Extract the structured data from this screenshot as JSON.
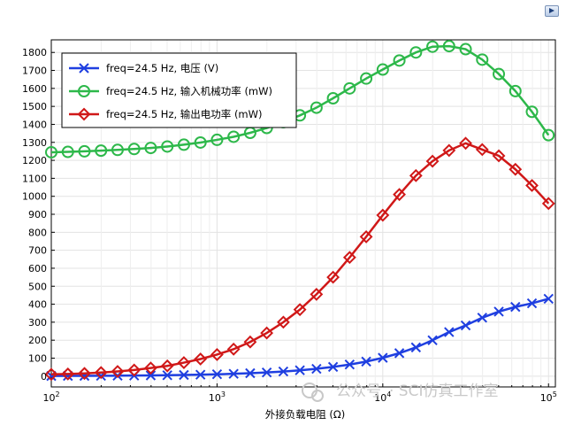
{
  "chart_data": {
    "type": "line",
    "title": "",
    "xlabel": "外接负载电阻 (Ω)",
    "ylabel": "",
    "xscale": "log",
    "xlim": [
      100,
      110000
    ],
    "ylim": [
      -60,
      1870
    ],
    "xticks": [
      {
        "value": 100,
        "label": "10",
        "exp": "2"
      },
      {
        "value": 1000,
        "label": "10",
        "exp": "3"
      },
      {
        "value": 10000,
        "label": "10",
        "exp": "4"
      },
      {
        "value": 100000,
        "label": "10",
        "exp": "5"
      }
    ],
    "yticks": [
      0,
      100,
      200,
      300,
      400,
      500,
      600,
      700,
      800,
      900,
      1000,
      1100,
      1200,
      1300,
      1400,
      1500,
      1600,
      1700,
      1800
    ],
    "grid": true,
    "legend_position": "top-left",
    "x": [
      100,
      125.9,
      158.5,
      199.5,
      251.2,
      316.2,
      398.1,
      501.2,
      631,
      794.3,
      1000,
      1259,
      1585,
      1995,
      2512,
      3162,
      3981,
      5012,
      6310,
      7943,
      10000,
      12589,
      15849,
      19953,
      25119,
      31623,
      39811,
      50119,
      63096,
      79433,
      100000
    ],
    "series": [
      {
        "name": "freq=24.5 Hz, 电压 (V)",
        "color": "#1f3fe0",
        "marker": "x",
        "values": [
          1,
          1.3,
          1.6,
          2,
          2.6,
          3.2,
          4.1,
          5.1,
          6.5,
          8.2,
          10.3,
          13,
          16.3,
          20.5,
          25.8,
          32.5,
          40.8,
          51.3,
          64.5,
          81,
          101.8,
          127.7,
          159.8,
          199.5,
          245,
          282,
          325,
          359,
          385,
          405,
          430
        ]
      },
      {
        "name": "freq=24.5 Hz, 输入机械功率 (mW)",
        "color": "#2db84a",
        "marker": "o",
        "values": [
          1245,
          1247,
          1250,
          1254,
          1258,
          1263,
          1269,
          1277,
          1287,
          1299,
          1314,
          1331,
          1353,
          1380,
          1412,
          1450,
          1493,
          1545,
          1600,
          1655,
          1705,
          1755,
          1800,
          1832,
          1835,
          1818,
          1760,
          1680,
          1585,
          1470,
          1340
        ]
      },
      {
        "name": "freq=24.5 Hz, 输出电功率 (mW)",
        "color": "#d01818",
        "marker": "d",
        "values": [
          10,
          12,
          15,
          20,
          26,
          34,
          45,
          57,
          75,
          95,
          120,
          150,
          190,
          240,
          300,
          370,
          455,
          550,
          660,
          775,
          895,
          1010,
          1115,
          1195,
          1255,
          1295,
          1260,
          1225,
          1150,
          1060,
          960
        ]
      }
    ]
  },
  "watermark": {
    "prefix": "公众号",
    "text": "· SCI仿真工作室"
  }
}
